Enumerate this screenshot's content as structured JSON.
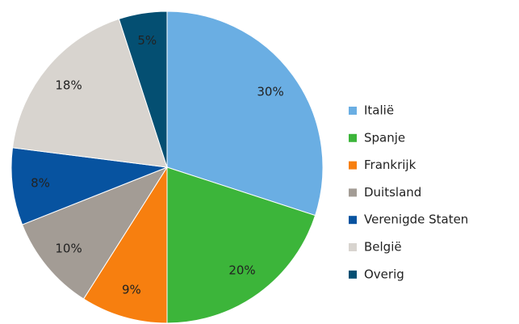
{
  "chart_data": {
    "type": "pie",
    "categories": [
      "Italië",
      "Spanje",
      "Frankrijk",
      "Duitsland",
      "Verenigde Staten",
      "België",
      "Overig"
    ],
    "values": [
      30,
      20,
      9,
      10,
      8,
      18,
      5
    ],
    "value_labels": [
      "30%",
      "20%",
      "9%",
      "10%",
      "8%",
      "18%",
      "5%"
    ],
    "colors": [
      "#6aaee3",
      "#3cb53a",
      "#f77f0f",
      "#a39c95",
      "#0753a0",
      "#d8d4cf",
      "#044f72"
    ],
    "legend": "right"
  }
}
